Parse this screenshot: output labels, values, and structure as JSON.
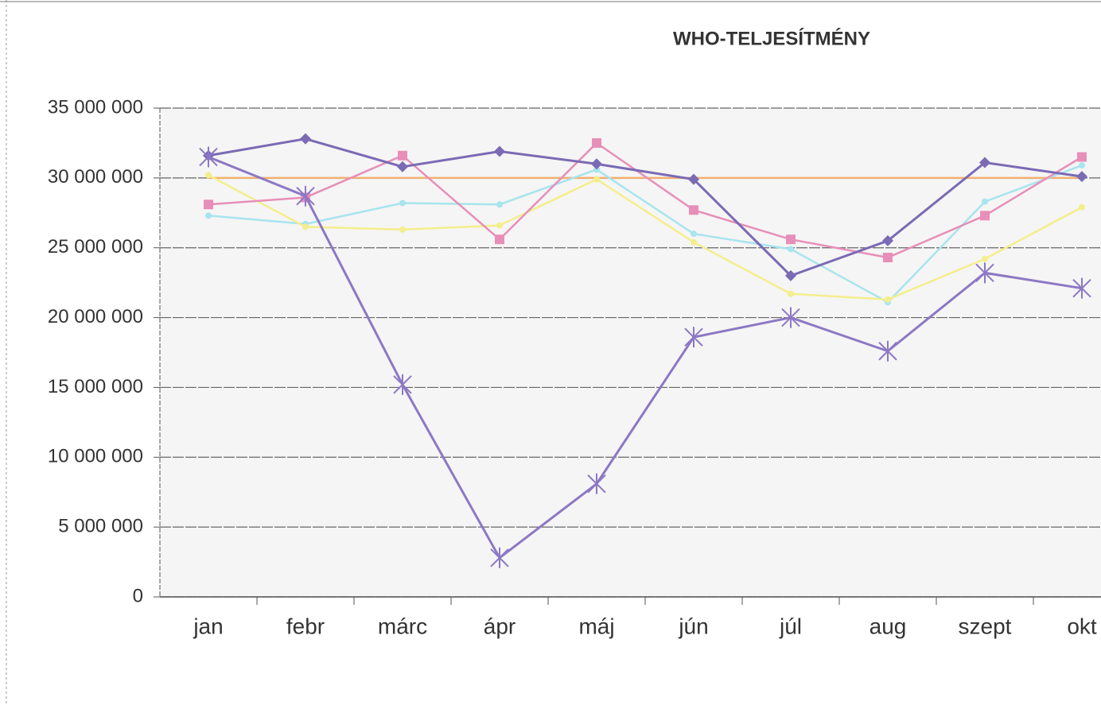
{
  "chart_data": {
    "type": "line",
    "title": "WHO-TELJESÍTMÉNY",
    "categories": [
      "jan",
      "febr",
      "márc",
      "ápr",
      "máj",
      "jún",
      "júl",
      "aug",
      "szept",
      "okt"
    ],
    "series": [
      {
        "color": "#f0b070",
        "marker": "none",
        "values": [
          30000000,
          30000000,
          30000000,
          30000000,
          30000000,
          30000000,
          30000000,
          30000000,
          30000000,
          30000000
        ]
      },
      {
        "color": "#a8e4ee",
        "marker": "circle",
        "values": [
          27300000,
          26700000,
          28200000,
          28100000,
          30600000,
          26000000,
          24900000,
          21100000,
          28300000,
          30900000
        ]
      },
      {
        "color": "#f4ee8c",
        "marker": "circle",
        "values": [
          30200000,
          26500000,
          26300000,
          26600000,
          29900000,
          25400000,
          21700000,
          21300000,
          24200000,
          27900000
        ]
      },
      {
        "color": "#e78fb8",
        "marker": "square",
        "values": [
          28100000,
          28600000,
          31600000,
          25600000,
          32500000,
          27700000,
          25600000,
          24300000,
          27300000,
          31500000
        ]
      },
      {
        "color": "#7b6ab4",
        "marker": "diamond",
        "values": [
          31600000,
          32800000,
          30800000,
          31900000,
          31000000,
          29900000,
          23000000,
          25500000,
          31100000,
          30100000
        ]
      },
      {
        "color": "#8c78c4",
        "marker": "star",
        "values": [
          31500000,
          28700000,
          15200000,
          2800000,
          8100000,
          18600000,
          20000000,
          17600000,
          23200000,
          22100000
        ]
      }
    ],
    "ylim": [
      0,
      35000000
    ],
    "yticks": [
      {
        "value": 0,
        "label": "0"
      },
      {
        "value": 5000000,
        "label": "5 000 000"
      },
      {
        "value": 10000000,
        "label": "10 000 000"
      },
      {
        "value": 15000000,
        "label": "15 000 000"
      },
      {
        "value": 20000000,
        "label": "20 000 000"
      },
      {
        "value": 25000000,
        "label": "25 000 000"
      },
      {
        "value": 30000000,
        "label": "30 000 000"
      },
      {
        "value": 35000000,
        "label": "35 000 000"
      }
    ],
    "grid": true
  }
}
